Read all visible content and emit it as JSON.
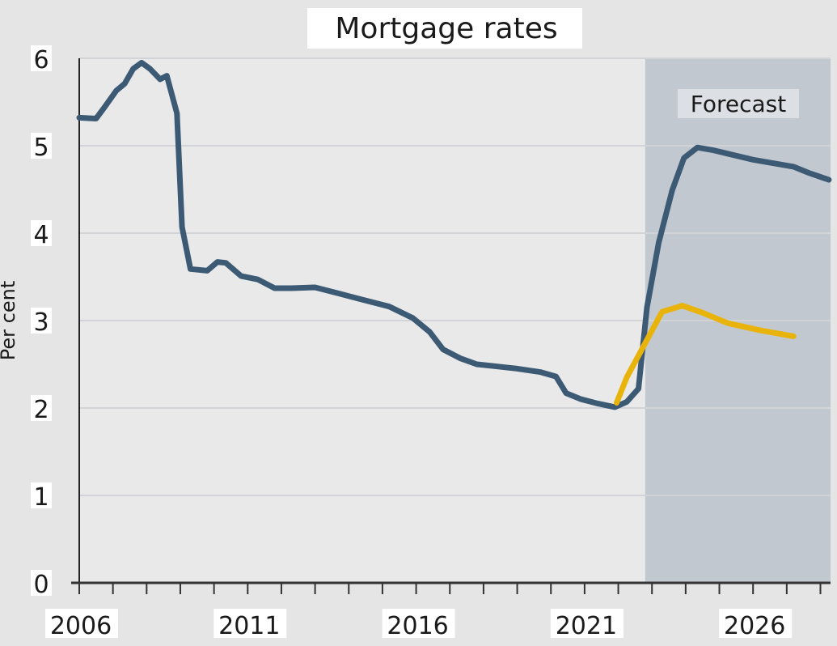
{
  "chart_data": {
    "type": "line",
    "title": "Mortgage rates",
    "ylabel": "Per cent",
    "xlabel": "",
    "xlim": [
      2006,
      2028.3
    ],
    "ylim": [
      0,
      6
    ],
    "x_ticks": [
      "2006",
      "2011",
      "2016",
      "2021",
      "2026"
    ],
    "y_ticks": [
      "0",
      "1",
      "2",
      "3",
      "4",
      "5",
      "6"
    ],
    "grid": true,
    "forecast": {
      "label": "Forecast",
      "start": 2022.8,
      "color": "#c2c8cf"
    },
    "series": [
      {
        "color": "#3d5a75",
        "x": [
          2006.0,
          2006.5,
          2006.75,
          2007.1,
          2007.35,
          2007.6,
          2007.85,
          2008.1,
          2008.4,
          2008.6,
          2008.9,
          2009.05,
          2009.3,
          2009.8,
          2010.1,
          2010.35,
          2010.8,
          2011.3,
          2011.8,
          2012.3,
          2013.0,
          2013.7,
          2014.4,
          2015.2,
          2015.9,
          2016.4,
          2016.8,
          2017.3,
          2017.8,
          2018.3,
          2019.0,
          2019.7,
          2020.15,
          2020.45,
          2020.9,
          2021.4,
          2021.9,
          2022.25,
          2022.6,
          2022.85,
          2023.2,
          2023.6,
          2023.95,
          2024.35,
          2024.8,
          2026.0,
          2027.2,
          2027.65,
          2028.25
        ],
        "y": [
          5.32,
          5.31,
          5.44,
          5.63,
          5.71,
          5.88,
          5.95,
          5.88,
          5.76,
          5.8,
          5.37,
          4.07,
          3.59,
          3.57,
          3.67,
          3.66,
          3.51,
          3.47,
          3.37,
          3.37,
          3.38,
          3.31,
          3.24,
          3.16,
          3.03,
          2.87,
          2.67,
          2.57,
          2.5,
          2.48,
          2.45,
          2.41,
          2.36,
          2.17,
          2.1,
          2.05,
          2.01,
          2.07,
          2.22,
          3.15,
          3.89,
          4.49,
          4.86,
          4.98,
          4.95,
          4.84,
          4.76,
          4.69,
          4.61
        ]
      },
      {
        "color": "#e8b40c",
        "x": [
          2021.95,
          2022.25,
          2022.7,
          2023.3,
          2023.9,
          2024.5,
          2025.25,
          2026.2,
          2027.2
        ],
        "y": [
          2.06,
          2.35,
          2.67,
          3.1,
          3.17,
          3.09,
          2.97,
          2.89,
          2.82
        ]
      }
    ]
  }
}
